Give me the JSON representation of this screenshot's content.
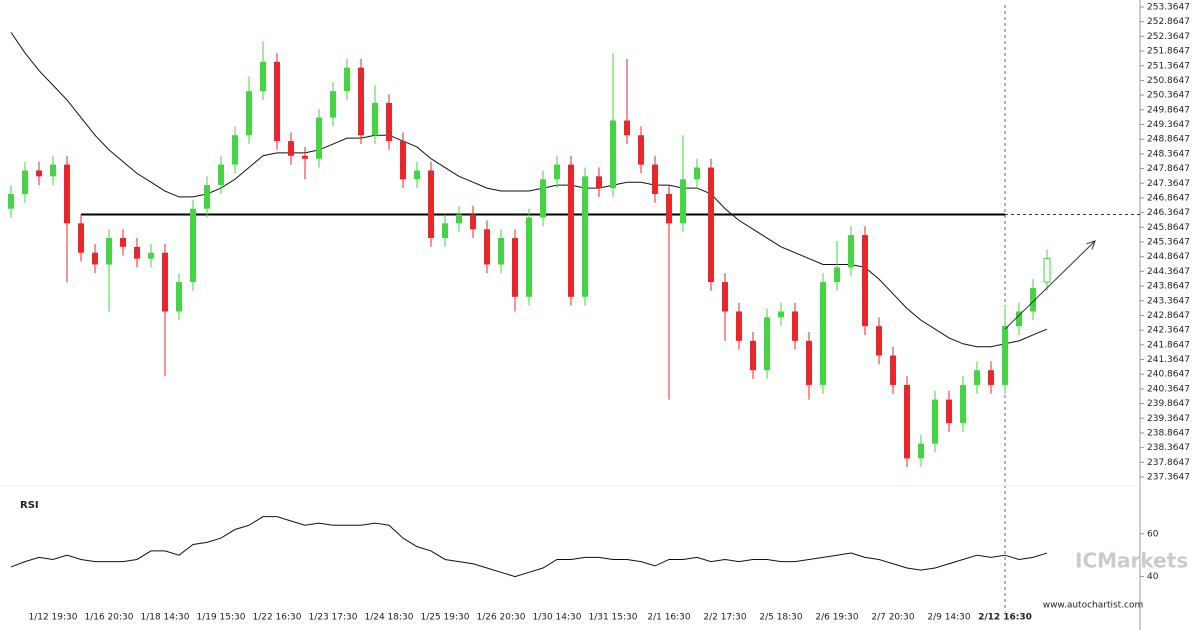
{
  "chart_data": {
    "type": "candlestick",
    "categories": [
      null,
      null,
      null,
      "1/12 19:30",
      null,
      null,
      null,
      "1/16 20:30",
      null,
      null,
      null,
      "1/18 14:30",
      null,
      null,
      null,
      "1/19 15:30",
      null,
      null,
      null,
      "1/22 16:30",
      null,
      null,
      null,
      "1/23 17:30",
      null,
      null,
      null,
      "1/24 18:30",
      null,
      null,
      null,
      "1/25 19:30",
      null,
      null,
      null,
      "1/26 20:30",
      null,
      null,
      null,
      "1/30 14:30",
      null,
      null,
      null,
      "1/31 15:30",
      null,
      null,
      null,
      "2/1 16:30",
      null,
      null,
      null,
      "2/2 17:30",
      null,
      null,
      null,
      "2/5 18:30",
      null,
      null,
      null,
      "2/6 19:30",
      null,
      null,
      null,
      "2/7 20:30",
      null,
      null,
      null,
      "2/9 14:30",
      null,
      null,
      null,
      "2/12 16:30",
      null,
      null,
      null
    ],
    "open": [
      246.5,
      247.0,
      247.8,
      247.6,
      248.0,
      246.0,
      245.0,
      244.6,
      245.5,
      245.2,
      244.8,
      245.0,
      243.0,
      244.0,
      246.5,
      247.3,
      248.0,
      249.0,
      250.5,
      251.5,
      248.8,
      248.3,
      248.2,
      249.6,
      250.5,
      251.3,
      249.0,
      250.1,
      248.8,
      247.5,
      247.8,
      245.5,
      246.0,
      246.3,
      245.8,
      244.6,
      245.5,
      243.5,
      246.2,
      247.5,
      248.0,
      243.5,
      247.6,
      247.2,
      249.5,
      249.0,
      248.0,
      247.0,
      246.0,
      247.5,
      247.9,
      244.0,
      243.0,
      242.0,
      241.0,
      242.8,
      243.0,
      242.0,
      240.5,
      244.0,
      244.5,
      245.6,
      242.5,
      241.5,
      240.5,
      238.0,
      238.5,
      240.0,
      239.2,
      240.5,
      241.0,
      240.5,
      242.5,
      243.0,
      244.0
    ],
    "high": [
      247.3,
      248.1,
      248.1,
      248.3,
      248.3,
      246.3,
      245.3,
      245.8,
      245.8,
      245.5,
      245.3,
      245.3,
      244.3,
      246.8,
      247.6,
      248.3,
      249.3,
      251.0,
      252.2,
      251.8,
      249.1,
      248.6,
      249.9,
      250.8,
      251.6,
      251.6,
      250.7,
      250.4,
      249.1,
      248.1,
      248.1,
      246.3,
      246.6,
      246.6,
      246.1,
      245.8,
      245.8,
      246.5,
      247.8,
      248.3,
      248.3,
      247.9,
      247.9,
      251.8,
      251.6,
      249.3,
      248.3,
      247.3,
      249.0,
      248.2,
      248.2,
      244.3,
      243.3,
      242.3,
      243.1,
      243.3,
      243.3,
      242.3,
      244.3,
      245.4,
      245.9,
      245.9,
      242.8,
      241.8,
      240.8,
      238.8,
      240.3,
      240.3,
      240.8,
      241.3,
      241.3,
      243.2,
      243.3,
      244.1,
      245.1
    ],
    "low": [
      246.2,
      246.7,
      247.3,
      247.3,
      244.0,
      244.7,
      244.3,
      243.0,
      244.9,
      244.5,
      244.5,
      240.8,
      242.7,
      243.7,
      246.2,
      247.0,
      247.7,
      248.7,
      250.2,
      248.5,
      248.0,
      247.5,
      247.9,
      249.3,
      250.2,
      248.7,
      248.7,
      248.5,
      247.2,
      247.2,
      245.2,
      245.2,
      245.7,
      245.5,
      244.3,
      244.3,
      243.0,
      243.2,
      245.9,
      247.2,
      243.2,
      243.2,
      246.9,
      246.9,
      248.7,
      247.7,
      246.7,
      240.0,
      245.7,
      247.2,
      243.7,
      242.0,
      241.7,
      240.7,
      240.7,
      242.5,
      241.7,
      240.0,
      240.2,
      243.7,
      244.2,
      242.2,
      241.2,
      240.2,
      237.7,
      237.7,
      238.2,
      238.9,
      238.9,
      240.2,
      240.2,
      240.2,
      242.2,
      242.7,
      243.7
    ],
    "close": [
      247.0,
      247.8,
      247.6,
      248.0,
      246.0,
      245.0,
      244.6,
      245.5,
      245.2,
      244.8,
      245.0,
      243.0,
      244.0,
      246.5,
      247.3,
      248.0,
      249.0,
      250.5,
      251.5,
      248.8,
      248.3,
      248.2,
      249.6,
      250.5,
      251.3,
      249.0,
      250.1,
      248.8,
      247.5,
      247.8,
      245.5,
      246.0,
      246.3,
      245.8,
      244.6,
      245.5,
      243.5,
      246.2,
      247.5,
      248.0,
      243.5,
      247.6,
      247.2,
      249.5,
      249.0,
      248.0,
      247.0,
      246.0,
      247.5,
      247.9,
      244.0,
      243.0,
      242.0,
      241.0,
      242.8,
      243.0,
      242.0,
      240.5,
      244.0,
      244.5,
      245.6,
      242.5,
      241.5,
      240.5,
      238.0,
      238.5,
      240.0,
      239.2,
      240.5,
      241.0,
      240.5,
      242.5,
      243.0,
      243.8,
      244.8
    ],
    "up_color": "#44d444",
    "down_color": "#e8262b",
    "moving_average": [
      252.5,
      251.8,
      251.2,
      250.7,
      250.2,
      249.6,
      249.0,
      248.5,
      248.1,
      247.7,
      247.4,
      247.1,
      246.9,
      246.9,
      247.0,
      247.2,
      247.5,
      247.9,
      248.3,
      248.4,
      248.4,
      248.4,
      248.5,
      248.7,
      248.9,
      248.9,
      249.0,
      249.0,
      248.8,
      248.6,
      248.2,
      247.9,
      247.6,
      247.4,
      247.2,
      247.1,
      247.1,
      247.1,
      247.2,
      247.3,
      247.3,
      247.2,
      247.2,
      247.3,
      247.4,
      247.4,
      247.3,
      247.3,
      247.2,
      247.2,
      247.0,
      246.5,
      246.1,
      245.8,
      245.5,
      245.2,
      245.0,
      244.8,
      244.6,
      244.6,
      244.6,
      244.5,
      244.1,
      243.6,
      243.1,
      242.7,
      242.4,
      242.1,
      241.9,
      241.8,
      241.8,
      241.9,
      242.0,
      242.2,
      242.4
    ],
    "resistance": 246.3,
    "projection": [
      242.4,
      245.4
    ],
    "ylim": [
      237.3647,
      253.3647
    ],
    "yticks": [
      253.3647,
      252.8647,
      252.3647,
      251.8647,
      251.3647,
      250.8647,
      250.3647,
      249.8647,
      249.3647,
      248.8647,
      248.3647,
      247.8647,
      247.3647,
      246.8647,
      246.3647,
      245.8647,
      245.3647,
      244.8647,
      244.3647,
      243.8647,
      243.3647,
      242.8647,
      242.3647,
      241.8647,
      241.3647,
      240.8647,
      240.3647,
      239.8647,
      239.3647,
      238.8647,
      238.3647,
      237.8647,
      237.3647
    ],
    "rsi": {
      "title": "RSI",
      "ylim": [
        30,
        80
      ],
      "yticks": [
        60,
        40
      ],
      "values": [
        44.5,
        47,
        49,
        48,
        50,
        48,
        47,
        47,
        47,
        48,
        52,
        52,
        50,
        55,
        56,
        58,
        62,
        64,
        68,
        68,
        66,
        64,
        65,
        64,
        64,
        64,
        65,
        64,
        58,
        54,
        52,
        48,
        47,
        46,
        44,
        42,
        40,
        42,
        44,
        48,
        48,
        49,
        49,
        48,
        48,
        47,
        45,
        48,
        48,
        49,
        47,
        48,
        47,
        48,
        48,
        47,
        47,
        48,
        49,
        50,
        51,
        49,
        48,
        46,
        44,
        43,
        44,
        46,
        48,
        50,
        49,
        50,
        48,
        49,
        51
      ]
    },
    "watermark": "ICMarkets",
    "source": "www.autochartist.com"
  }
}
